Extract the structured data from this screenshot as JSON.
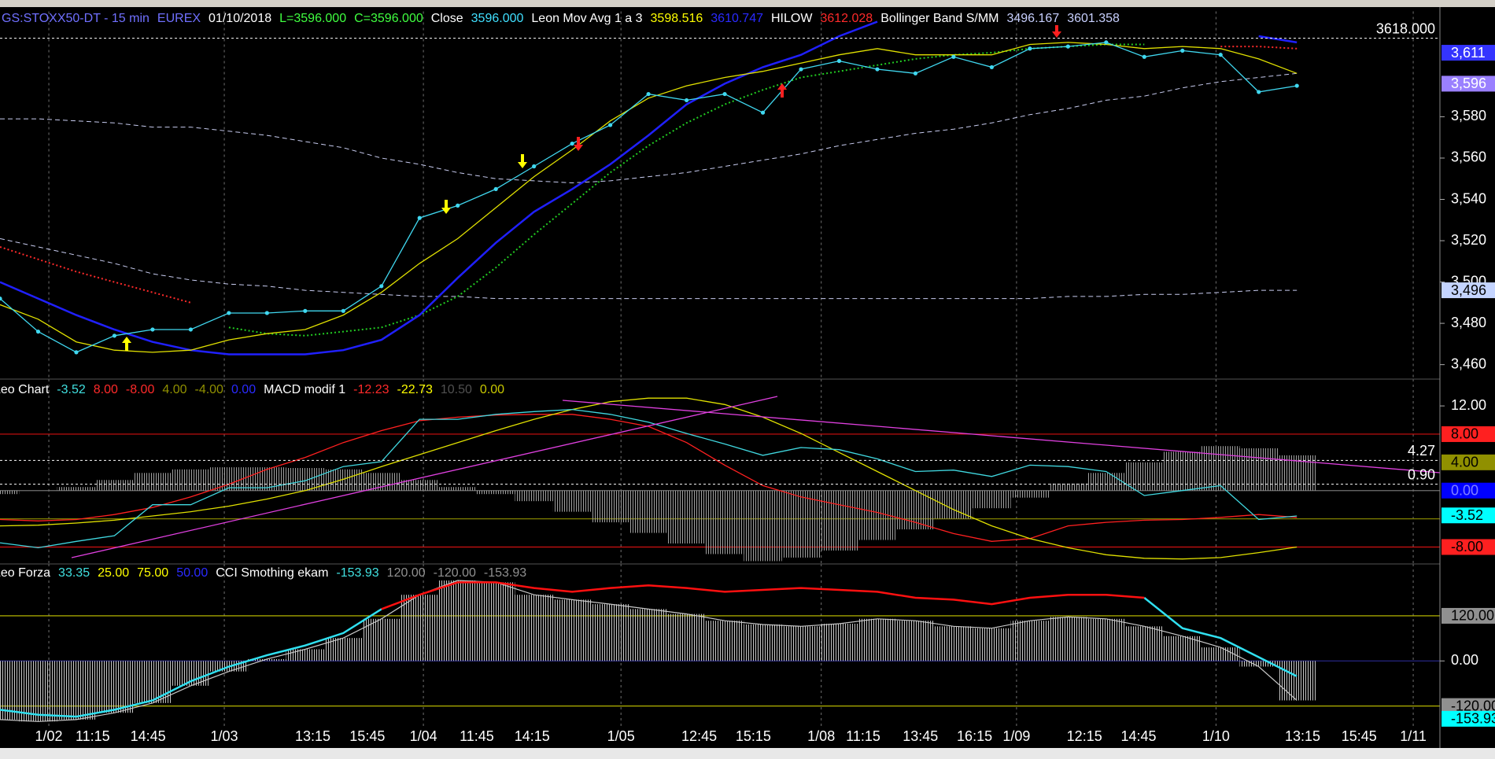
{
  "chart_data": [
    {
      "type": "line",
      "legend": [
        {
          "text": "GS:STOXX50-DT - 15 min",
          "color": "#7070ff"
        },
        {
          "text": "EUREX",
          "color": "#7070ff"
        },
        {
          "text": "01/10/2018",
          "color": "#ffffff"
        },
        {
          "text": "L=3596.000",
          "color": "#40ff40"
        },
        {
          "text": "C=3596.000",
          "color": "#40ff40"
        },
        {
          "text": "Close",
          "color": "#ffffff"
        },
        {
          "text": "3596.000",
          "color": "#40e0ff"
        },
        {
          "text": "Leon Mov Avg 1 a 3",
          "color": "#ffffff"
        },
        {
          "text": "3598.516",
          "color": "#ffff00"
        },
        {
          "text": "3610.747",
          "color": "#2a2aff"
        },
        {
          "text": "HILOW",
          "color": "#ffffff"
        },
        {
          "text": "3612.028",
          "color": "#ff2a2a"
        },
        {
          "text": "Bollinger Band S/MM",
          "color": "#ffffff"
        },
        {
          "text": "3496.167",
          "color": "#c8d0ff"
        },
        {
          "text": "3601.358",
          "color": "#c8d0ff"
        }
      ],
      "xlim": [
        0,
        37.75
      ],
      "ylim": [
        3453,
        3631
      ],
      "yticks": [
        {
          "value": 3460,
          "label": "3,460"
        },
        {
          "value": 3480,
          "label": "3,480"
        },
        {
          "value": 3500,
          "label": "3,500"
        },
        {
          "value": 3520,
          "label": "3,520"
        },
        {
          "value": 3540,
          "label": "3,540"
        },
        {
          "value": 3560,
          "label": "3,560"
        },
        {
          "value": 3580,
          "label": "3,580"
        }
      ],
      "series": [
        {
          "color": "#c8ccf0",
          "style": "dashed",
          "width": 1,
          "values": [
            3579,
            3579,
            3578,
            3577,
            3575,
            3575,
            3573,
            3571,
            3568,
            3565,
            3560,
            3557,
            3553,
            3550,
            3549,
            3548,
            3549,
            3551,
            3553,
            3556,
            3559,
            3562,
            3566,
            3569,
            3572,
            3574,
            3577,
            3581,
            3584,
            3588,
            3590,
            3594,
            3597,
            3599,
            3601
          ]
        },
        {
          "color": "#c8ccf0",
          "style": "dashed",
          "width": 1,
          "values": [
            3521,
            3517,
            3513,
            3509,
            3504,
            3501,
            3499,
            3498,
            3496,
            3495,
            3494,
            3493,
            3493,
            3492,
            3492,
            3492,
            3492,
            3492,
            3492,
            3492,
            3492,
            3492,
            3492,
            3492,
            3492,
            3492,
            3492,
            3492,
            3493,
            3493,
            3494,
            3494,
            3495,
            3496,
            3496
          ]
        },
        {
          "color": "#ff2a2a",
          "style": "dotted",
          "width": 2,
          "values": [
            3517,
            3511,
            3505,
            3500,
            3495,
            3490,
            null,
            null,
            null,
            null,
            null,
            null,
            null,
            null,
            null,
            null,
            null,
            null,
            null,
            null,
            null,
            null,
            null,
            null,
            null,
            null,
            null,
            null,
            null,
            null,
            null,
            null,
            3614,
            3614,
            3613
          ]
        },
        {
          "color": "#22cc22",
          "style": "dotted",
          "width": 2,
          "values": [
            null,
            null,
            null,
            null,
            null,
            null,
            3478,
            3475,
            3474,
            3476,
            3478,
            3484,
            3493,
            3507,
            3523,
            3538,
            3553,
            3566,
            3577,
            3586,
            3593,
            3599,
            3602,
            3605,
            3608,
            3610,
            3611,
            3613,
            3614,
            3615,
            3615,
            null,
            null,
            null,
            null
          ]
        },
        {
          "color": "#2020ff",
          "style": "line",
          "width": 2.5,
          "values": [
            3500,
            3492,
            3484,
            3477,
            3471,
            3467,
            3465,
            3465,
            3465,
            3467,
            3472,
            3484,
            3502,
            3519,
            3534,
            3545,
            3557,
            3571,
            3586,
            3596,
            3604,
            3610,
            3619,
            3626,
            null,
            null,
            null,
            null,
            null,
            null,
            null,
            null,
            null,
            3619,
            3616
          ]
        },
        {
          "color": "#e0e000",
          "style": "line",
          "width": 1.3,
          "values": [
            3489,
            3482,
            3471,
            3467,
            3466,
            3467,
            3472,
            3475,
            3477,
            3484,
            3495,
            3509,
            3521,
            3536,
            3551,
            3564,
            3578,
            3589,
            3595,
            3599,
            3602,
            3606,
            3610,
            3613,
            3610,
            3610,
            3610,
            3615,
            3616,
            3615,
            3613,
            3614,
            3613,
            3608,
            3601
          ]
        },
        {
          "color": "#40d8f0",
          "style": "line",
          "width": 1.3,
          "markers": true,
          "values": [
            3492,
            3476,
            3466,
            3474,
            3477,
            3477,
            3485,
            3485,
            3486,
            3486,
            3498,
            3531,
            3537,
            3545,
            3556,
            3567,
            3576,
            3591,
            3588,
            3591,
            3582,
            3603,
            3607,
            3603,
            3601,
            3609,
            3604,
            3613,
            3614,
            3616,
            3609,
            3612,
            3610,
            3592,
            3595
          ]
        }
      ],
      "hlines": [
        {
          "value": 3618,
          "label": "3618.000",
          "color": "#ffffff"
        }
      ],
      "value_boxes": [
        {
          "value": 3611,
          "label": "3,611",
          "color": "#3434ff",
          "text_color": "#ffffff"
        },
        {
          "value": 3596,
          "label": "3,596",
          "color": "#9a80ff",
          "text_color": "#ffffff"
        },
        {
          "value": 3496,
          "label": "3,496",
          "color": "#c4d4ff",
          "text_color": "#000000"
        }
      ]
    },
    {
      "type": "line",
      "legend": [
        {
          "text": "Leo Chart",
          "color": "#ffffff"
        },
        {
          "text": "-3.52",
          "color": "#40e0e0"
        },
        {
          "text": "8.00",
          "color": "#ff2a2a"
        },
        {
          "text": "-8.00",
          "color": "#ff2a2a"
        },
        {
          "text": "4.00",
          "color": "#909000"
        },
        {
          "text": "-4.00",
          "color": "#909000"
        },
        {
          "text": "0.00",
          "color": "#2a2aff"
        },
        {
          "text": "MACD modif 1",
          "color": "#ffffff"
        },
        {
          "text": "-12.23",
          "color": "#ff2a2a"
        },
        {
          "text": "-22.73",
          "color": "#ffff00"
        },
        {
          "text": "10.50",
          "color": "#505050"
        },
        {
          "text": "0.00",
          "color": "#c8c800"
        }
      ],
      "xlim": [
        0,
        37.75
      ],
      "ylim": [
        -10.4,
        15.8
      ],
      "yticks": [
        {
          "value": 12,
          "label": "12.00"
        }
      ],
      "levels": [
        {
          "value": 8,
          "color": "#d01010"
        },
        {
          "value": -8,
          "color": "#d01010"
        },
        {
          "value": -4,
          "color": "#808000"
        },
        {
          "value": 0,
          "color": "#707070"
        }
      ],
      "series": [
        {
          "color": "#a0a0a0",
          "style": "histogram",
          "values": [
            -0.5,
            0,
            0.5,
            1.5,
            2.5,
            3,
            3.3,
            3.3,
            3.2,
            3,
            2.5,
            1.5,
            0.5,
            -0.5,
            -1.5,
            -3,
            -4.5,
            -6,
            -7.5,
            -9,
            -10,
            -9.5,
            -8.5,
            -7,
            -5.5,
            -4,
            -2.5,
            -1,
            1,
            2.5,
            4,
            5.5,
            6.3,
            6,
            5
          ]
        },
        {
          "color": "#ff2020",
          "style": "line",
          "width": 1.3,
          "values": [
            -4.1,
            -4.3,
            -4.1,
            -3.4,
            -2.4,
            -0.9,
            0.9,
            3,
            4.7,
            6.8,
            8.5,
            9.9,
            10.4,
            10.7,
            10.8,
            10.8,
            10.1,
            9.1,
            6.8,
            3.6,
            0.7,
            -0.9,
            -2,
            -3.1,
            -4.5,
            -6.1,
            -7.2,
            -6.8,
            -5,
            -4.5,
            -4.2,
            -4.1,
            -3.8,
            -3.4,
            -3.8
          ]
        },
        {
          "color": "#e0e000",
          "style": "line",
          "width": 1.3,
          "values": [
            -5,
            -4.9,
            -4.6,
            -4.2,
            -3.6,
            -3,
            -2.2,
            -1.2,
            0,
            1.6,
            3.4,
            5.1,
            6.8,
            8.5,
            10.1,
            11.5,
            12.6,
            13.1,
            13.1,
            12.2,
            10.4,
            8.1,
            5.4,
            2.7,
            0,
            -2.7,
            -5,
            -6.8,
            -8.1,
            -9.1,
            -9.6,
            -9.7,
            -9.5,
            -8.8,
            -8
          ]
        },
        {
          "color": "#40d8e0",
          "style": "line",
          "width": 1.3,
          "values": [
            -7.4,
            -8.1,
            -7.2,
            -6.4,
            -2,
            -2,
            0.4,
            0.4,
            1.4,
            3.4,
            4.1,
            10.1,
            10.1,
            10.8,
            11.2,
            11.5,
            10.8,
            9.7,
            8.1,
            6.6,
            5,
            6.1,
            5.8,
            4.5,
            2.7,
            2.9,
            2,
            3.6,
            3.4,
            2.7,
            -0.7,
            0,
            0.7,
            -4.1,
            -3.6
          ]
        }
      ],
      "hlines": [
        {
          "value": 4.27,
          "label": "4.27",
          "color": "#ffffff"
        },
        {
          "value": 0.9,
          "label": "0.90",
          "color": "#ffffff"
        }
      ],
      "value_boxes": [
        {
          "value": 8,
          "label": "8.00",
          "color": "#ff2020",
          "text_color": "#000000"
        },
        {
          "value": 4,
          "label": "4.00",
          "color": "#909000",
          "text_color": "#000000"
        },
        {
          "value": 0,
          "label": "0.00",
          "color": "#0000ff",
          "text_color": "#8080ff"
        },
        {
          "value": -3.52,
          "label": "-3.52",
          "color": "#00ffff",
          "text_color": "#000000"
        },
        {
          "value": -8,
          "label": "-8.00",
          "color": "#ff2020",
          "text_color": "#000000"
        }
      ]
    },
    {
      "type": "line",
      "legend": [
        {
          "text": "Leo Forza",
          "color": "#ffffff"
        },
        {
          "text": "33.35",
          "color": "#40e0e0"
        },
        {
          "text": "25.00",
          "color": "#ffff00"
        },
        {
          "text": "75.00",
          "color": "#ffff00"
        },
        {
          "text": "50.00",
          "color": "#2a2aff"
        },
        {
          "text": "CCI Smothing ekam",
          "color": "#ffffff"
        },
        {
          "text": "-153.93",
          "color": "#40e0e0"
        },
        {
          "text": "120.00",
          "color": "#909090"
        },
        {
          "text": "-120.00",
          "color": "#909090"
        },
        {
          "text": "-153.93",
          "color": "#909090"
        }
      ],
      "xlim": [
        0,
        37.75
      ],
      "ylim": [
        -173,
        258
      ],
      "yticks": [
        {
          "value": 0,
          "label": "0.00"
        }
      ],
      "xticks": [
        {
          "value": 1.28,
          "label": "1/02"
        },
        {
          "value": 2.43,
          "label": "11:15"
        },
        {
          "value": 3.88,
          "label": "14:45"
        },
        {
          "value": 5.88,
          "label": "1/03"
        },
        {
          "value": 8.2,
          "label": "13:15"
        },
        {
          "value": 9.63,
          "label": "15:45"
        },
        {
          "value": 11.1,
          "label": "1/04"
        },
        {
          "value": 12.5,
          "label": "11:45"
        },
        {
          "value": 13.95,
          "label": "14:15"
        },
        {
          "value": 16.28,
          "label": "1/05"
        },
        {
          "value": 18.33,
          "label": "12:45"
        },
        {
          "value": 19.75,
          "label": "15:15"
        },
        {
          "value": 21.53,
          "label": "1/08"
        },
        {
          "value": 22.63,
          "label": "11:15"
        },
        {
          "value": 24.13,
          "label": "13:45"
        },
        {
          "value": 25.55,
          "label": "16:15"
        },
        {
          "value": 26.65,
          "label": "1/09"
        },
        {
          "value": 28.43,
          "label": "12:15"
        },
        {
          "value": 29.85,
          "label": "14:45"
        },
        {
          "value": 31.88,
          "label": "1/10"
        },
        {
          "value": 34.15,
          "label": "13:15"
        },
        {
          "value": 35.63,
          "label": "15:45"
        },
        {
          "value": 37.05,
          "label": "1/11"
        }
      ],
      "levels": [
        {
          "value": 120,
          "color": "#c8c800"
        },
        {
          "value": -120,
          "color": "#c8c800"
        },
        {
          "value": 0,
          "color": "#2a2a90"
        }
      ],
      "series": [
        {
          "color": "#c8c8c8",
          "style": "histogram",
          "outline": true,
          "values": [
            -156,
            -161,
            -156,
            -138,
            -112,
            -66,
            -28,
            5,
            31,
            61,
            112,
            176,
            214,
            209,
            176,
            163,
            151,
            138,
            125,
            107,
            97,
            92,
            99,
            112,
            107,
            92,
            87,
            107,
            117,
            112,
            92,
            66,
            36,
            -15,
            -105
          ]
        },
        {
          "color": "#30e0f0",
          "style": "line",
          "width": 2.5,
          "values": [
            -130,
            -143,
            -148,
            -130,
            -105,
            -54,
            -15,
            15,
            41,
            74,
            138,
            null,
            null,
            null,
            null,
            null,
            null,
            null,
            null,
            null,
            null,
            null,
            null,
            null,
            null,
            null,
            null,
            null,
            null,
            null,
            168,
            87,
            61,
            10,
            -41
          ]
        },
        {
          "color": "#ff1010",
          "style": "line",
          "width": 2.5,
          "values": [
            null,
            null,
            null,
            null,
            null,
            null,
            null,
            null,
            null,
            null,
            138,
            176,
            209,
            209,
            194,
            184,
            194,
            201,
            194,
            184,
            189,
            194,
            189,
            184,
            168,
            163,
            151,
            168,
            176,
            176,
            168,
            null,
            null,
            null,
            null
          ]
        }
      ],
      "value_boxes": [
        {
          "value": 120,
          "label": "120.00",
          "color": "#909090",
          "text_color": "#000000"
        },
        {
          "value": -120,
          "label": "-120.00",
          "color": "#909090",
          "text_color": "#000000"
        },
        {
          "value": -153.93,
          "label": "-153.93",
          "color": "#00ffff",
          "text_color": "#000000"
        }
      ]
    }
  ]
}
